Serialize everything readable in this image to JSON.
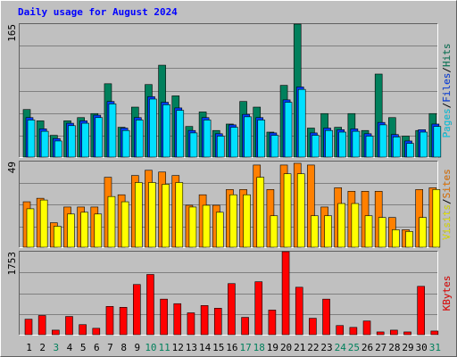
{
  "chart_data": {
    "type": "bar",
    "title": "Daily usage for August 2024",
    "categories": [
      "1",
      "2",
      "3",
      "4",
      "5",
      "6",
      "7",
      "8",
      "9",
      "10",
      "11",
      "12",
      "13",
      "14",
      "15",
      "16",
      "17",
      "18",
      "19",
      "20",
      "21",
      "22",
      "23",
      "24",
      "25",
      "26",
      "27",
      "28",
      "29",
      "30",
      "31"
    ],
    "category_colors": [
      "#000000",
      "#000000",
      "#00805c",
      "#000000",
      "#000000",
      "#000000",
      "#000000",
      "#000000",
      "#000000",
      "#00805c",
      "#00805c",
      "#000000",
      "#000000",
      "#000000",
      "#000000",
      "#000000",
      "#00805c",
      "#00805c",
      "#000000",
      "#000000",
      "#000000",
      "#000000",
      "#000000",
      "#00805c",
      "#00805c",
      "#000000",
      "#000000",
      "#000000",
      "#000000",
      "#000000",
      "#00805c"
    ],
    "legend_separator": "/",
    "panels": [
      {
        "ylim": [
          0,
          165
        ],
        "yticks": [
          165
        ],
        "series": [
          {
            "name": "Hits",
            "color": "#00805c",
            "values": [
              59,
              45,
              27,
              45,
              49,
              54,
              91,
              37,
              62,
              90,
              114,
              76,
              38,
              56,
              33,
              41,
              69,
              62,
              31,
              89,
              165,
              36,
              54,
              37,
              54,
              33,
              103,
              49,
              26,
              33,
              54
            ]
          },
          {
            "name": "Files",
            "color": "#0040ff",
            "values": [
              49,
              35,
              23,
              42,
              45,
              52,
              69,
              36,
              49,
              75,
              68,
              61,
              33,
              49,
              29,
              40,
              53,
              49,
              30,
              71,
              87,
              30,
              36,
              34,
              35,
              29,
              43,
              28,
              20,
              34,
              41
            ]
          },
          {
            "name": "Pages",
            "color": "#00e0ff",
            "values": [
              46,
              32,
              20,
              39,
              42,
              49,
              66,
              33,
              46,
              72,
              65,
              58,
              30,
              46,
              26,
              37,
              50,
              46,
              27,
              68,
              84,
              27,
              33,
              31,
              32,
              26,
              40,
              25,
              17,
              31,
              38
            ]
          }
        ]
      },
      {
        "ylim": [
          0,
          49
        ],
        "yticks": [
          49
        ],
        "series": [
          {
            "name": "Sites",
            "color": "#ff8000",
            "values": [
              26,
              28,
              14,
              23,
              23,
              23,
              40,
              30,
              41,
              44,
              43,
              41,
              24,
              30,
              24,
              33,
              33,
              47,
              33,
              47,
              48,
              47,
              23,
              34,
              32,
              32,
              32,
              17,
              10,
              33,
              34
            ]
          },
          {
            "name": "Visits",
            "color": "#ffff00",
            "values": [
              22,
              27,
              12,
              19,
              20,
              19,
              29,
              26,
              37,
              37,
              36,
              37,
              23,
              24,
              20,
              30,
              30,
              40,
              18,
              42,
              42,
              18,
              18,
              25,
              25,
              18,
              17,
              10,
              9,
              17,
              33
            ]
          }
        ]
      },
      {
        "ylim": [
          0,
          1753
        ],
        "yticks": [
          1753
        ],
        "series": [
          {
            "name": "KBytes",
            "color": "#ff0000",
            "values": [
              327,
              405,
              96,
              385,
              212,
              135,
              597,
              578,
              1060,
              1272,
              751,
              655,
              462,
              616,
              559,
              1079,
              366,
              1118,
              520,
              1753,
              1002,
              347,
              751,
              193,
              154,
              289,
              58,
              96,
              58,
              1021,
              77
            ]
          }
        ]
      }
    ]
  }
}
